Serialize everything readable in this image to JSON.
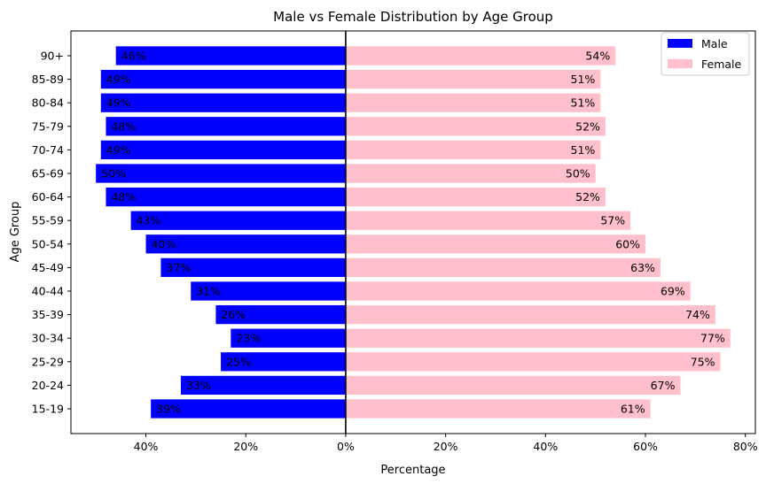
{
  "chart_data": {
    "type": "bar",
    "orientation": "horizontal",
    "title": "Male vs Female Distribution by Age Group",
    "xlabel": "Percentage",
    "ylabel": "Age Group",
    "categories": [
      "15-19",
      "20-24",
      "25-29",
      "30-34",
      "35-39",
      "40-44",
      "45-49",
      "50-54",
      "55-59",
      "60-64",
      "65-69",
      "70-74",
      "75-79",
      "80-84",
      "85-89",
      "90+"
    ],
    "series": [
      {
        "name": "Male",
        "color": "#0000ff",
        "direction": "left",
        "values": [
          39,
          33,
          25,
          23,
          26,
          31,
          37,
          40,
          43,
          48,
          50,
          49,
          48,
          49,
          49,
          46
        ],
        "labels": [
          "39%",
          "33%",
          "25%",
          "23%",
          "26%",
          "31%",
          "37%",
          "40%",
          "43%",
          "48%",
          "50%",
          "49%",
          "48%",
          "49%",
          "49%",
          "46%"
        ]
      },
      {
        "name": "Female",
        "color": "#ffc0cb",
        "direction": "right",
        "values": [
          61,
          67,
          75,
          77,
          74,
          69,
          63,
          60,
          57,
          52,
          50,
          51,
          52,
          51,
          51,
          54
        ],
        "labels": [
          "61%",
          "67%",
          "75%",
          "77%",
          "74%",
          "69%",
          "63%",
          "60%",
          "57%",
          "52%",
          "50%",
          "51%",
          "52%",
          "51%",
          "51%",
          "54%"
        ]
      }
    ],
    "xlim": [
      -55,
      82
    ],
    "xticks": [
      -40,
      -20,
      0,
      20,
      40,
      60,
      80
    ],
    "xtick_labels": [
      "40%",
      "20%",
      "0%",
      "20%",
      "40%",
      "60%",
      "80%"
    ],
    "grid": false,
    "legend_position": "top-right",
    "zero_line_color": "#000000"
  }
}
